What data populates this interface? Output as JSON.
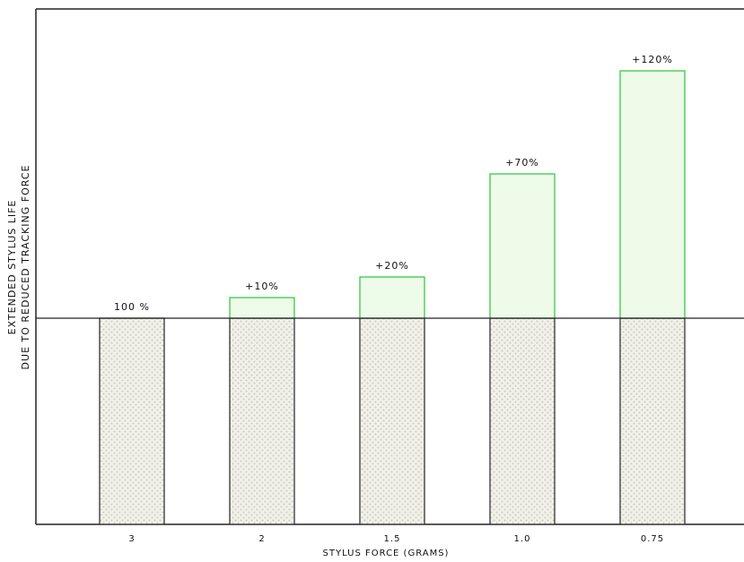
{
  "chart_data": {
    "type": "stacked_bar",
    "y_label_lines": [
      "EXTENDED STYLUS LIFE",
      "DUE TO REDUCED TRACKING FORCE"
    ],
    "x_label": "STYLUS FORCE (GRAMS)",
    "categories": [
      "3",
      "2",
      "1.5",
      "1.0",
      "0.75"
    ],
    "series": [
      {
        "color": "#e4e4dc",
        "values": [
          100,
          100,
          100,
          100,
          100
        ],
        "value_labels": [
          "100 %",
          null,
          null,
          null,
          null
        ]
      },
      {
        "color": "#effbe9",
        "values": [
          null,
          10,
          20,
          70,
          120
        ],
        "value_labels": [
          null,
          "+10%",
          "+20%",
          "+70%",
          "+120%"
        ]
      }
    ],
    "ylim": [
      0,
      250
    ]
  }
}
